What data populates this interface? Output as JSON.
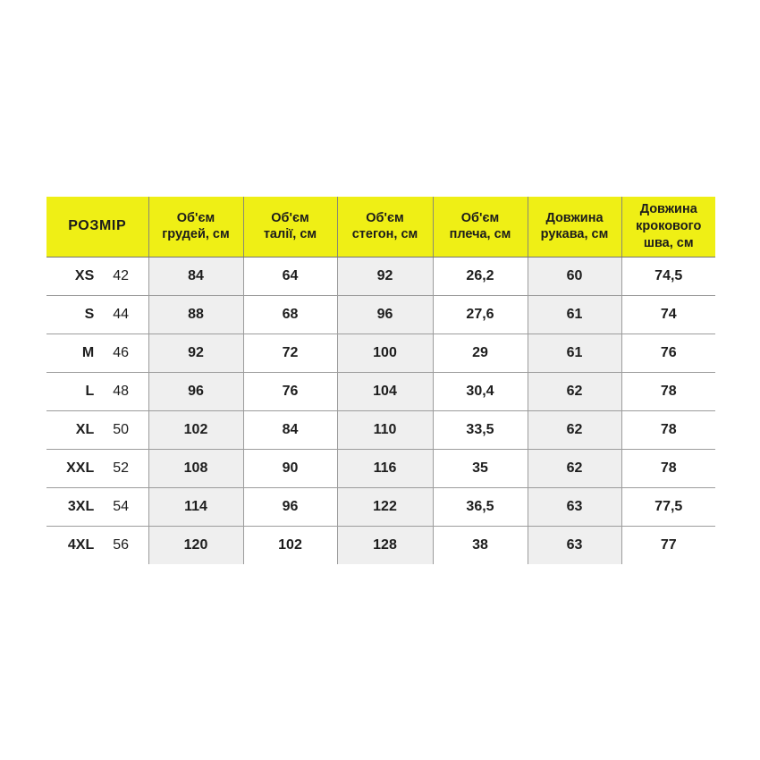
{
  "page": {
    "background_color": "#ffffff"
  },
  "table": {
    "name": "size-chart",
    "colors": {
      "header_background": "#EFEF15",
      "stripe_column_background": "#EFEFEF",
      "border": "#9c9c9c",
      "text": "#1d1d1d"
    },
    "headers": [
      "РОЗМІР",
      "Об'єм\nгрудей, см",
      "Об'єм\nталії, см",
      "Об'єм\nстегон, см",
      "Об'єм\nплеча, см",
      "Довжина\nрукава, см",
      "Довжина\nкрокового\nшва, см"
    ],
    "rows": [
      {
        "size": "XS",
        "size_number": "42",
        "values": [
          "84",
          "64",
          "92",
          "26,2",
          "60",
          "74,5"
        ]
      },
      {
        "size": "S",
        "size_number": "44",
        "values": [
          "88",
          "68",
          "96",
          "27,6",
          "61",
          "74"
        ]
      },
      {
        "size": "M",
        "size_number": "46",
        "values": [
          "92",
          "72",
          "100",
          "29",
          "61",
          "76"
        ]
      },
      {
        "size": "L",
        "size_number": "48",
        "values": [
          "96",
          "76",
          "104",
          "30,4",
          "62",
          "78"
        ]
      },
      {
        "size": "XL",
        "size_number": "50",
        "values": [
          "102",
          "84",
          "110",
          "33,5",
          "62",
          "78"
        ]
      },
      {
        "size": "XXL",
        "size_number": "52",
        "values": [
          "108",
          "90",
          "116",
          "35",
          "62",
          "78"
        ]
      },
      {
        "size": "3XL",
        "size_number": "54",
        "values": [
          "114",
          "96",
          "122",
          "36,5",
          "63",
          "77,5"
        ]
      },
      {
        "size": "4XL",
        "size_number": "56",
        "values": [
          "120",
          "102",
          "128",
          "38",
          "63",
          "77"
        ]
      }
    ]
  }
}
